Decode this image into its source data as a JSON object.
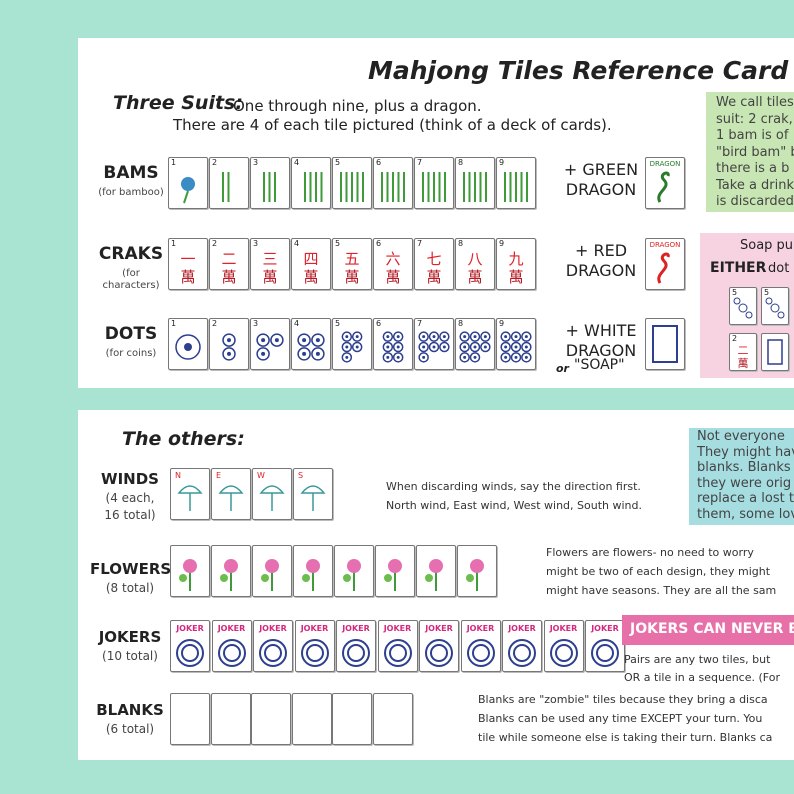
{
  "title": "Mahjong Tiles Reference Card",
  "tile_numbers": [
    "1",
    "2",
    "3",
    "4",
    "5",
    "6",
    "7",
    "8",
    "9"
  ],
  "crak_characters": [
    "一",
    "二",
    "三",
    "四",
    "五",
    "六",
    "七",
    "八",
    "九"
  ],
  "crak_suffix": "萬",
  "dragon_tile_label": "DRAGON",
  "three_suits": {
    "heading": "Three Suits:",
    "lines": [
      "One through nine, plus a dragon.",
      "There are 4 of each tile pictured (think of a deck of cards)."
    ]
  },
  "suits": [
    {
      "name": "BAMS",
      "note": [
        "(for bamboo)"
      ],
      "dragon": [
        "+ GREEN",
        "DRAGON"
      ]
    },
    {
      "name": "CRAKS",
      "note": [
        "(for",
        "characters)"
      ],
      "dragon": [
        "+ RED",
        "DRAGON"
      ]
    },
    {
      "name": "DOTS",
      "note": [
        "(for coins)"
      ],
      "dragon": [
        "+ WHITE",
        "DRAGON"
      ]
    }
  ],
  "soap": {
    "or": "or",
    "name": "\"SOAP\""
  },
  "green_note": [
    "We call tiles",
    "suit: 2 crak,",
    "1 bam is of",
    "\"bird bam\" b",
    "there is a b",
    "Take a drink",
    "is discarded"
  ],
  "pink_note": {
    "line1": "Soap pu",
    "either": "EITHER",
    "rest": " dot o"
  },
  "others": {
    "heading": "The others:",
    "winds": {
      "name": "WINDS",
      "note": [
        "(4 each,",
        "16 total)"
      ],
      "letters": [
        "N",
        "E",
        "W",
        "S"
      ],
      "text": [
        "When discarding winds, say the direction first.",
        "North wind, East wind, West wind, South wind."
      ]
    },
    "flowers": {
      "name": "FLOWERS",
      "note": [
        "(8 total)"
      ],
      "text": [
        "Flowers are flowers- no need to worry",
        "might be two of each design, they might",
        "might have seasons. They are all the sam"
      ]
    },
    "jokers": {
      "name": "JOKERS",
      "note": [
        "(10 total)"
      ],
      "tile_label": "JOKER",
      "banner": "JOKERS CAN NEVER BE USE",
      "text": [
        "Pairs are any two tiles, but",
        "OR a tile in a sequence. (For"
      ]
    },
    "blanks": {
      "name": "BLANKS",
      "note": [
        "(6 total)"
      ],
      "text": [
        "Blanks are \"zombie\" tiles because they bring a disca",
        "Blanks can be used any time EXCEPT your turn. You",
        "tile while someone else is taking their turn. Blanks ca"
      ]
    },
    "blue_note": [
      "Not everyone",
      "They might hav",
      "blanks. Blanks a",
      "they were orig",
      "replace a lost t",
      "them, some lov"
    ]
  }
}
